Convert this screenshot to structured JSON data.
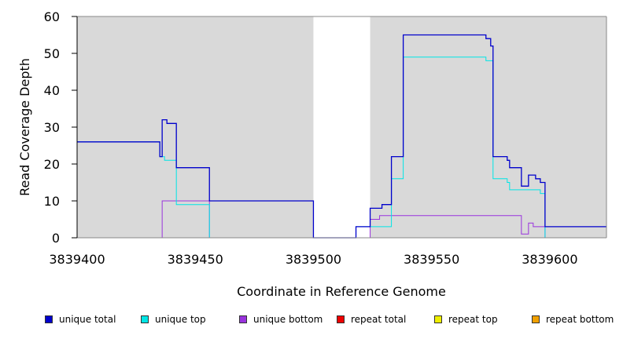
{
  "chart_data": {
    "type": "line",
    "title": "",
    "xlabel": "Coordinate in Reference Genome",
    "ylabel": "Read Coverage Depth",
    "xlim": [
      3839400,
      3839624
    ],
    "ylim": [
      0,
      60
    ],
    "x_ticks": [
      3839400,
      3839450,
      3839500,
      3839550,
      3839600
    ],
    "x_tick_labels": [
      "3839400",
      "3839450",
      "3839500",
      "3839550",
      "3839600"
    ],
    "y_ticks": [
      0,
      10,
      20,
      30,
      40,
      50,
      60
    ],
    "y_tick_labels": [
      "0",
      "10",
      "20",
      "30",
      "40",
      "50",
      "60"
    ],
    "shaded_regions": [
      [
        3839400,
        3839500
      ],
      [
        3839524,
        3839624
      ]
    ],
    "shade_color": "#d9d9d9",
    "legend_placement": "bottom",
    "series": [
      {
        "name": "unique total",
        "color": "#0000cc",
        "step_points": [
          [
            3839400,
            26
          ],
          [
            3839435,
            26
          ],
          [
            3839435,
            22
          ],
          [
            3839436,
            22
          ],
          [
            3839436,
            32
          ],
          [
            3839438,
            32
          ],
          [
            3839438,
            31
          ],
          [
            3839442,
            31
          ],
          [
            3839442,
            19
          ],
          [
            3839456,
            19
          ],
          [
            3839456,
            10
          ],
          [
            3839500,
            10
          ],
          [
            3839500,
            0
          ],
          [
            3839518,
            0
          ],
          [
            3839518,
            3
          ],
          [
            3839524,
            3
          ],
          [
            3839524,
            8
          ],
          [
            3839529,
            8
          ],
          [
            3839529,
            9
          ],
          [
            3839533,
            9
          ],
          [
            3839533,
            22
          ],
          [
            3839538,
            22
          ],
          [
            3839538,
            55
          ],
          [
            3839573,
            55
          ],
          [
            3839573,
            54
          ],
          [
            3839575,
            54
          ],
          [
            3839575,
            52
          ],
          [
            3839576,
            52
          ],
          [
            3839576,
            22
          ],
          [
            3839582,
            22
          ],
          [
            3839582,
            21
          ],
          [
            3839583,
            21
          ],
          [
            3839583,
            19
          ],
          [
            3839588,
            19
          ],
          [
            3839588,
            14
          ],
          [
            3839591,
            14
          ],
          [
            3839591,
            17
          ],
          [
            3839594,
            17
          ],
          [
            3839594,
            16
          ],
          [
            3839596,
            16
          ],
          [
            3839596,
            15
          ],
          [
            3839598,
            15
          ],
          [
            3839598,
            3
          ],
          [
            3839624,
            3
          ]
        ]
      },
      {
        "name": "unique top",
        "color": "#00e5e5",
        "step_points": [
          [
            3839400,
            26
          ],
          [
            3839435,
            26
          ],
          [
            3839435,
            22
          ],
          [
            3839437,
            22
          ],
          [
            3839437,
            21
          ],
          [
            3839442,
            21
          ],
          [
            3839442,
            9
          ],
          [
            3839456,
            9
          ],
          [
            3839456,
            0
          ],
          [
            3839518,
            0
          ],
          [
            3839518,
            3
          ],
          [
            3839533,
            3
          ],
          [
            3839533,
            16
          ],
          [
            3839538,
            16
          ],
          [
            3839538,
            49
          ],
          [
            3839573,
            49
          ],
          [
            3839573,
            48
          ],
          [
            3839576,
            48
          ],
          [
            3839576,
            16
          ],
          [
            3839582,
            16
          ],
          [
            3839582,
            15
          ],
          [
            3839583,
            15
          ],
          [
            3839583,
            13
          ],
          [
            3839596,
            13
          ],
          [
            3839596,
            12
          ],
          [
            3839598,
            12
          ],
          [
            3839598,
            0
          ],
          [
            3839624,
            0
          ]
        ]
      },
      {
        "name": "unique bottom",
        "color": "#9933dd",
        "step_points": [
          [
            3839400,
            0
          ],
          [
            3839436,
            0
          ],
          [
            3839436,
            10
          ],
          [
            3839456,
            10
          ],
          [
            3839456,
            0
          ],
          [
            3839524,
            0
          ],
          [
            3839524,
            5
          ],
          [
            3839528,
            5
          ],
          [
            3839528,
            6
          ],
          [
            3839588,
            6
          ],
          [
            3839588,
            1
          ],
          [
            3839591,
            1
          ],
          [
            3839591,
            4
          ],
          [
            3839593,
            4
          ],
          [
            3839593,
            3
          ],
          [
            3839598,
            3
          ],
          [
            3839598,
            0
          ],
          [
            3839624,
            0
          ]
        ]
      },
      {
        "name": "repeat total",
        "color": "#ee0000",
        "step_points": [
          [
            3839400,
            0
          ],
          [
            3839624,
            0
          ]
        ]
      },
      {
        "name": "repeat top",
        "color": "#eeee00",
        "step_points": [
          [
            3839400,
            0
          ],
          [
            3839624,
            0
          ]
        ]
      },
      {
        "name": "repeat bottom",
        "color": "#f0a000",
        "step_points": [
          [
            3839400,
            0
          ],
          [
            3839624,
            0
          ]
        ]
      }
    ]
  }
}
